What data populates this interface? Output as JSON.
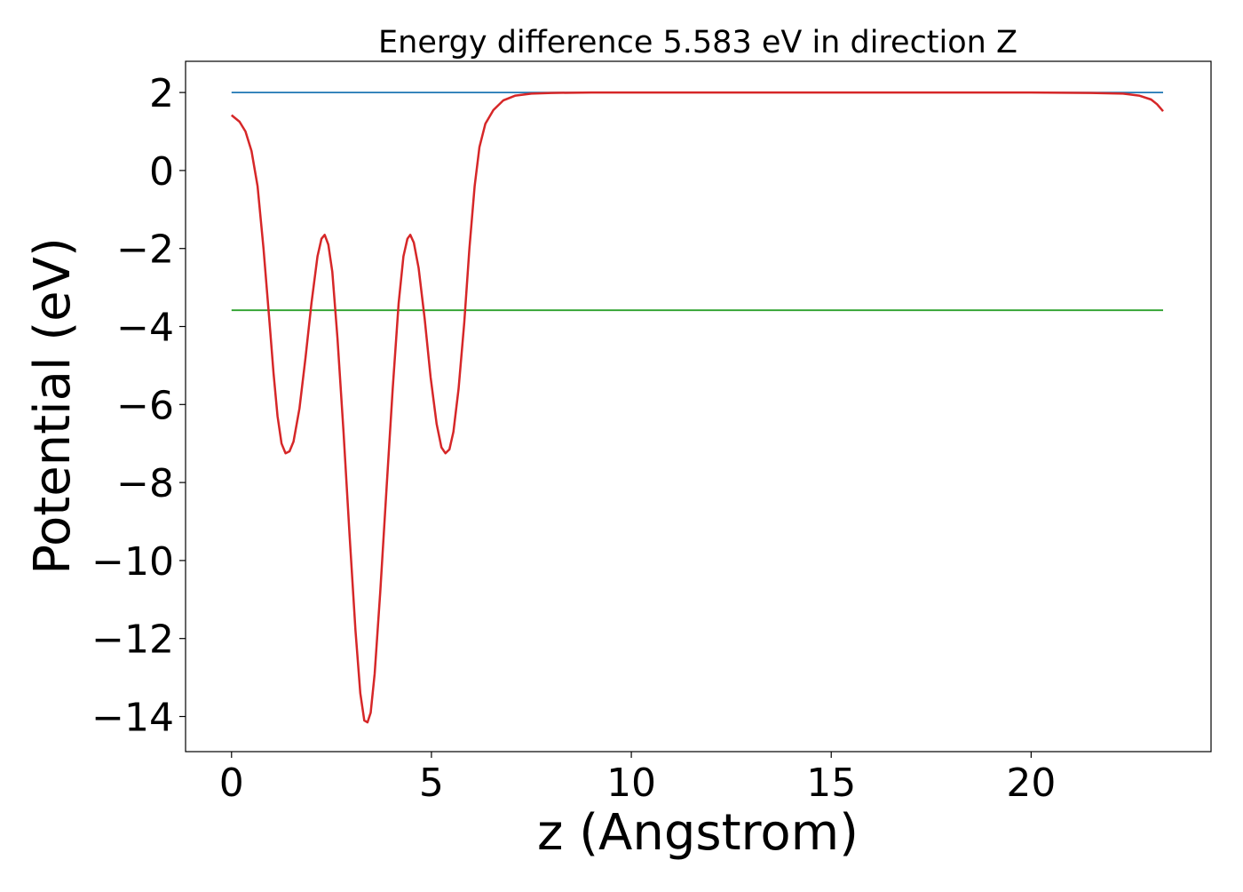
{
  "chart_data": {
    "type": "line",
    "title": "Energy difference 5.583 eV in direction Z",
    "xlabel": "z (Angstrom)",
    "ylabel": "Potential (eV)",
    "xlim": [
      -1.15,
      24.5
    ],
    "ylim": [
      -14.9,
      2.8
    ],
    "x_ticks": [
      0,
      5,
      10,
      15,
      20
    ],
    "x_tick_labels": [
      "0",
      "5",
      "10",
      "15",
      "20"
    ],
    "y_ticks": [
      2,
      0,
      -2,
      -4,
      -6,
      -8,
      -10,
      -12,
      -14
    ],
    "y_tick_labels": [
      "2",
      "0",
      "−2",
      "−4",
      "−6",
      "−8",
      "−10",
      "−12",
      "−14"
    ],
    "grid": false,
    "series": [
      {
        "color": "#d62728",
        "points": [
          [
            0.0,
            1.42
          ],
          [
            0.2,
            1.25
          ],
          [
            0.35,
            1.0
          ],
          [
            0.5,
            0.5
          ],
          [
            0.65,
            -0.4
          ],
          [
            0.8,
            -2.0
          ],
          [
            0.95,
            -3.9
          ],
          [
            1.05,
            -5.2
          ],
          [
            1.15,
            -6.3
          ],
          [
            1.25,
            -7.0
          ],
          [
            1.35,
            -7.25
          ],
          [
            1.45,
            -7.2
          ],
          [
            1.55,
            -6.95
          ],
          [
            1.7,
            -6.1
          ],
          [
            1.85,
            -4.8
          ],
          [
            2.0,
            -3.4
          ],
          [
            2.15,
            -2.2
          ],
          [
            2.25,
            -1.75
          ],
          [
            2.33,
            -1.65
          ],
          [
            2.42,
            -1.9
          ],
          [
            2.52,
            -2.6
          ],
          [
            2.65,
            -4.3
          ],
          [
            2.8,
            -6.7
          ],
          [
            2.95,
            -9.3
          ],
          [
            3.1,
            -11.8
          ],
          [
            3.22,
            -13.4
          ],
          [
            3.32,
            -14.1
          ],
          [
            3.4,
            -14.15
          ],
          [
            3.48,
            -13.9
          ],
          [
            3.58,
            -12.9
          ],
          [
            3.72,
            -10.8
          ],
          [
            3.88,
            -8.1
          ],
          [
            4.03,
            -5.6
          ],
          [
            4.18,
            -3.4
          ],
          [
            4.3,
            -2.2
          ],
          [
            4.4,
            -1.75
          ],
          [
            4.47,
            -1.65
          ],
          [
            4.56,
            -1.85
          ],
          [
            4.68,
            -2.5
          ],
          [
            4.83,
            -3.8
          ],
          [
            4.98,
            -5.3
          ],
          [
            5.13,
            -6.5
          ],
          [
            5.25,
            -7.1
          ],
          [
            5.35,
            -7.25
          ],
          [
            5.45,
            -7.15
          ],
          [
            5.55,
            -6.7
          ],
          [
            5.68,
            -5.6
          ],
          [
            5.82,
            -3.9
          ],
          [
            5.95,
            -2.0
          ],
          [
            6.08,
            -0.4
          ],
          [
            6.2,
            0.6
          ],
          [
            6.35,
            1.2
          ],
          [
            6.55,
            1.55
          ],
          [
            6.8,
            1.8
          ],
          [
            7.1,
            1.92
          ],
          [
            7.5,
            1.97
          ],
          [
            8.0,
            1.99
          ],
          [
            9.0,
            2.0
          ],
          [
            12.0,
            2.0
          ],
          [
            16.0,
            2.0
          ],
          [
            20.0,
            2.0
          ],
          [
            21.5,
            1.99
          ],
          [
            22.3,
            1.97
          ],
          [
            22.7,
            1.92
          ],
          [
            23.0,
            1.82
          ],
          [
            23.15,
            1.7
          ],
          [
            23.3,
            1.52
          ]
        ]
      },
      {
        "color": "#1f77b4",
        "points": [
          [
            0.0,
            2.0
          ],
          [
            23.3,
            2.0
          ]
        ]
      },
      {
        "color": "#2ca02c",
        "points": [
          [
            0.0,
            -3.583
          ],
          [
            23.3,
            -3.583
          ]
        ]
      }
    ]
  }
}
